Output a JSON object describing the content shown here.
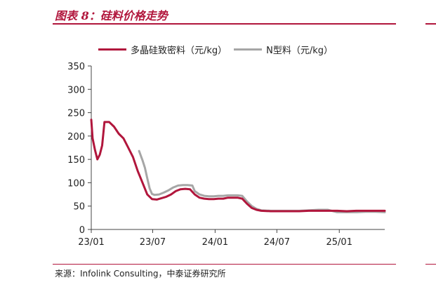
{
  "header": {
    "title": "图表 8：硅料价格走势"
  },
  "footer": {
    "source": "来源：Infolink Consulting，中泰证券研究所"
  },
  "chart_data": {
    "type": "line",
    "title": "图表 8：硅料价格走势",
    "xlabel": "",
    "ylabel": "",
    "ylim": [
      0,
      350
    ],
    "yticks": [
      0,
      50,
      100,
      150,
      200,
      250,
      300,
      350
    ],
    "xticks": [
      "23/01",
      "23/07",
      "24/01",
      "24/07",
      "25/01"
    ],
    "xrange": [
      "2023-01-01",
      "2025-05-15"
    ],
    "grid": false,
    "legend_position": "top",
    "series": [
      {
        "name": "多晶硅致密料（元/kg）",
        "color": "#b1163c",
        "points": [
          [
            "2023-01-01",
            235
          ],
          [
            "2023-01-05",
            195
          ],
          [
            "2023-01-12",
            170
          ],
          [
            "2023-01-19",
            150
          ],
          [
            "2023-01-26",
            160
          ],
          [
            "2023-02-02",
            180
          ],
          [
            "2023-02-09",
            230
          ],
          [
            "2023-02-23",
            230
          ],
          [
            "2023-03-09",
            220
          ],
          [
            "2023-03-23",
            205
          ],
          [
            "2023-04-06",
            195
          ],
          [
            "2023-04-20",
            175
          ],
          [
            "2023-05-04",
            155
          ],
          [
            "2023-05-18",
            125
          ],
          [
            "2023-06-01",
            100
          ],
          [
            "2023-06-15",
            75
          ],
          [
            "2023-06-29",
            65
          ],
          [
            "2023-07-13",
            64
          ],
          [
            "2023-07-27",
            67
          ],
          [
            "2023-08-10",
            70
          ],
          [
            "2023-08-24",
            75
          ],
          [
            "2023-09-07",
            82
          ],
          [
            "2023-09-21",
            86
          ],
          [
            "2023-10-05",
            87
          ],
          [
            "2023-10-19",
            86
          ],
          [
            "2023-11-02",
            75
          ],
          [
            "2023-11-16",
            68
          ],
          [
            "2023-11-30",
            66
          ],
          [
            "2023-12-14",
            65
          ],
          [
            "2023-12-28",
            65
          ],
          [
            "2024-01-11",
            66
          ],
          [
            "2024-01-25",
            66
          ],
          [
            "2024-02-08",
            68
          ],
          [
            "2024-02-22",
            68
          ],
          [
            "2024-03-07",
            68
          ],
          [
            "2024-03-21",
            66
          ],
          [
            "2024-04-04",
            55
          ],
          [
            "2024-04-18",
            46
          ],
          [
            "2024-05-02",
            42
          ],
          [
            "2024-05-16",
            40
          ],
          [
            "2024-06-13",
            39
          ],
          [
            "2024-07-11",
            39
          ],
          [
            "2024-08-08",
            39
          ],
          [
            "2024-09-05",
            39
          ],
          [
            "2024-10-03",
            40
          ],
          [
            "2024-10-31",
            40
          ],
          [
            "2024-11-28",
            40
          ],
          [
            "2024-12-26",
            40
          ],
          [
            "2025-01-23",
            39
          ],
          [
            "2025-02-20",
            40
          ],
          [
            "2025-03-20",
            40
          ],
          [
            "2025-04-17",
            40
          ],
          [
            "2025-05-15",
            40
          ]
        ]
      },
      {
        "name": "N型料（元/kg）",
        "color": "#a6a6a6",
        "points": [
          [
            "2023-05-22",
            168
          ],
          [
            "2023-06-01",
            148
          ],
          [
            "2023-06-08",
            132
          ],
          [
            "2023-06-15",
            110
          ],
          [
            "2023-06-22",
            88
          ],
          [
            "2023-06-29",
            76
          ],
          [
            "2023-07-06",
            74
          ],
          [
            "2023-07-20",
            75
          ],
          [
            "2023-08-03",
            79
          ],
          [
            "2023-08-17",
            84
          ],
          [
            "2023-08-31",
            90
          ],
          [
            "2023-09-14",
            94
          ],
          [
            "2023-09-28",
            95
          ],
          [
            "2023-10-12",
            95
          ],
          [
            "2023-10-26",
            94
          ],
          [
            "2023-11-02",
            82
          ],
          [
            "2023-11-16",
            75
          ],
          [
            "2023-11-30",
            72
          ],
          [
            "2023-12-14",
            71
          ],
          [
            "2023-12-28",
            71
          ],
          [
            "2024-01-11",
            72
          ],
          [
            "2024-01-25",
            72
          ],
          [
            "2024-02-08",
            73
          ],
          [
            "2024-02-22",
            73
          ],
          [
            "2024-03-07",
            73
          ],
          [
            "2024-03-21",
            72
          ],
          [
            "2024-04-04",
            60
          ],
          [
            "2024-04-18",
            50
          ],
          [
            "2024-05-02",
            44
          ],
          [
            "2024-05-16",
            41
          ],
          [
            "2024-06-13",
            40
          ],
          [
            "2024-07-11",
            40
          ],
          [
            "2024-08-08",
            40
          ],
          [
            "2024-09-05",
            40
          ],
          [
            "2024-10-03",
            41
          ],
          [
            "2024-10-31",
            42
          ],
          [
            "2024-11-28",
            42
          ],
          [
            "2024-12-26",
            37
          ],
          [
            "2025-01-23",
            37
          ],
          [
            "2025-02-20",
            37
          ],
          [
            "2025-03-20",
            38
          ],
          [
            "2025-04-17",
            38
          ],
          [
            "2025-05-15",
            37
          ]
        ]
      }
    ]
  }
}
